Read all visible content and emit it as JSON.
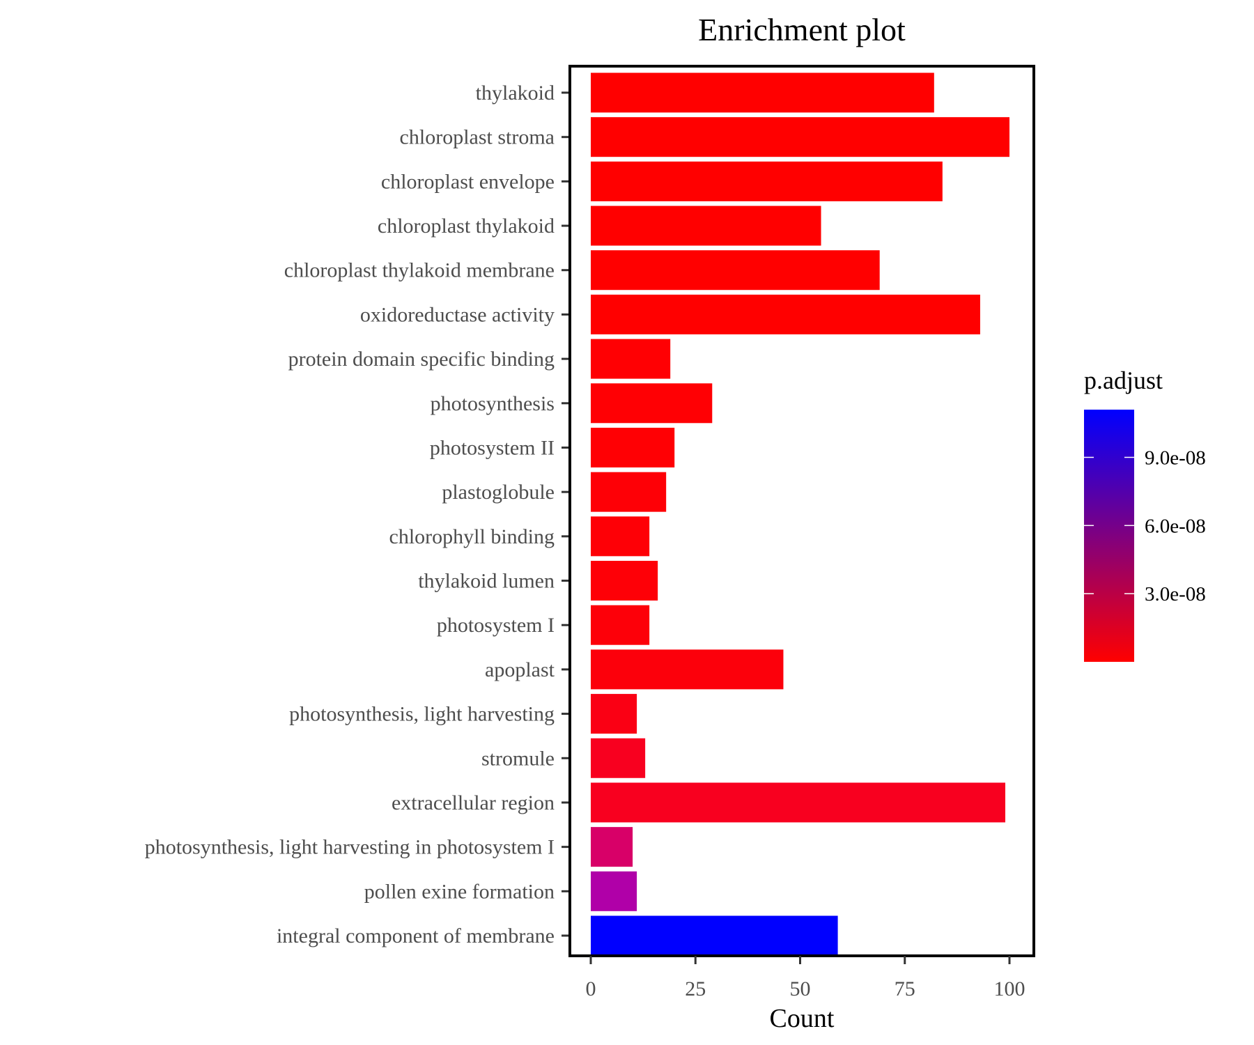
{
  "chart_data": {
    "type": "bar",
    "orientation": "horizontal",
    "title": "Enrichment plot",
    "xlabel": "Count",
    "ylabel": "",
    "xlim": [
      0,
      105
    ],
    "xticks": [
      0,
      25,
      50,
      75,
      100
    ],
    "xtick_labels": [
      "0",
      "25",
      "50",
      "75",
      "100"
    ],
    "grid": false,
    "categories": [
      "thylakoid",
      "chloroplast stroma",
      "chloroplast envelope",
      "chloroplast thylakoid",
      "chloroplast thylakoid membrane",
      "oxidoreductase activity",
      "protein domain specific binding",
      "photosynthesis",
      "photosystem II",
      "plastoglobule",
      "chlorophyll binding",
      "thylakoid lumen",
      "photosystem I",
      "apoplast",
      "photosynthesis, light harvesting",
      "stromule",
      "extracellular region",
      "photosynthesis, light harvesting in photosystem I",
      "pollen exine formation",
      "integral component of membrane"
    ],
    "values": [
      82,
      100,
      84,
      55,
      69,
      93,
      19,
      29,
      20,
      18,
      14,
      16,
      14,
      46,
      11,
      13,
      99,
      10,
      11,
      59
    ],
    "p_adjust": [
      1e-10,
      1e-10,
      1e-10,
      1e-10,
      1e-10,
      1e-10,
      2e-10,
      3e-10,
      3e-10,
      5e-10,
      5e-10,
      6e-10,
      8e-10,
      1e-09,
      2e-09,
      3e-09,
      3e-09,
      4.5e-08,
      7e-08,
      1.11e-07
    ],
    "colors": [
      "#ff0000",
      "#ff0000",
      "#ff0000",
      "#ff0000",
      "#ff0000",
      "#ff0000",
      "#ff0003",
      "#ff0004",
      "#ff0004",
      "#fe0006",
      "#fe0006",
      "#fe0007",
      "#fd0009",
      "#fc000b",
      "#fa0014",
      "#f8001f",
      "#f8001f",
      "#d80068",
      "#b000a8",
      "#0000ff"
    ],
    "legend": {
      "title": "p.adjust",
      "placement": "right",
      "range": [
        0,
        1.11e-07
      ],
      "ticks": [
        3e-08,
        6e-08,
        9e-08
      ],
      "tick_labels": [
        "3.0e-08",
        "6.0e-08",
        "9.0e-08"
      ],
      "low_color": "#ff0000",
      "high_color": "#0000ff"
    }
  }
}
